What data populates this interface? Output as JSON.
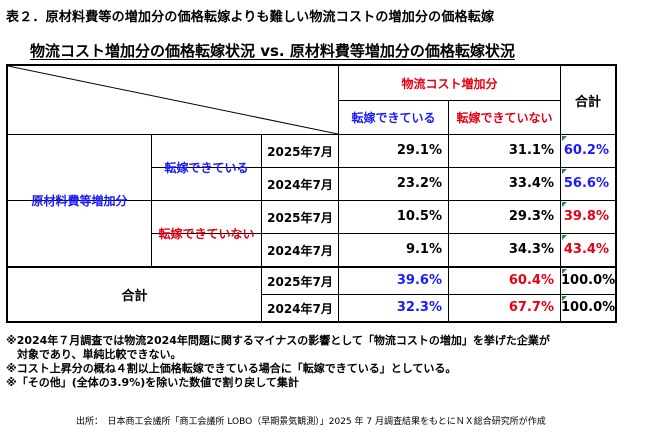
{
  "page_title": "表２．原材料費等の増加分の価格転嫁よりも難しい物流コストの増加分の価格転嫁",
  "table_title": "物流コスト増加分の価格転嫁状況 vs. 原材料費等増加分の価格転嫁状況",
  "header": {
    "group_label": "物流コスト増加分",
    "col_passed": "転嫁できている",
    "col_not_passed": "転嫁できていない",
    "col_total": "合計"
  },
  "rows": {
    "material_group": "原材料費等増加分",
    "passed_label": "転嫁できている",
    "not_passed_label": "転嫁できていない",
    "total_label": "合計",
    "year_2025": "2025年7月",
    "year_2024": "2024年7月"
  },
  "values": {
    "passed_2025": [
      "29.1%",
      "31.1%",
      "60.2%"
    ],
    "passed_2024": [
      "23.2%",
      "33.4%",
      "56.6%"
    ],
    "notpassed_2025": [
      "10.5%",
      "29.3%",
      "39.8%"
    ],
    "notpassed_2024": [
      "9.1%",
      "34.3%",
      "43.4%"
    ],
    "total_2025": [
      "39.6%",
      "60.4%",
      "100.0%"
    ],
    "total_2024": [
      "32.3%",
      "67.7%",
      "100.0%"
    ]
  },
  "notes": [
    "※2024年７月調査では物流2024年問題に関するマイナスの影響として「物流コストの増加」を挙げた企業が",
    "　対象であり、単純比較できない。",
    "※コスト上昇分の概ね４割以上価格転嫁できている場合に「転嫁できている」としている。",
    "※「その他」(全体の3.9%)を除いた数値で割り戻して集計"
  ],
  "source": "出所：　日本商工会議所「商工会議所 LOBO（早期景気観測）」2025 年 7 月調査結果をもとにＮＸ総合研究所が作成",
  "colors": {
    "red": "#e60012",
    "blue": "#1a1aff",
    "marker": "#2e8b2e"
  }
}
